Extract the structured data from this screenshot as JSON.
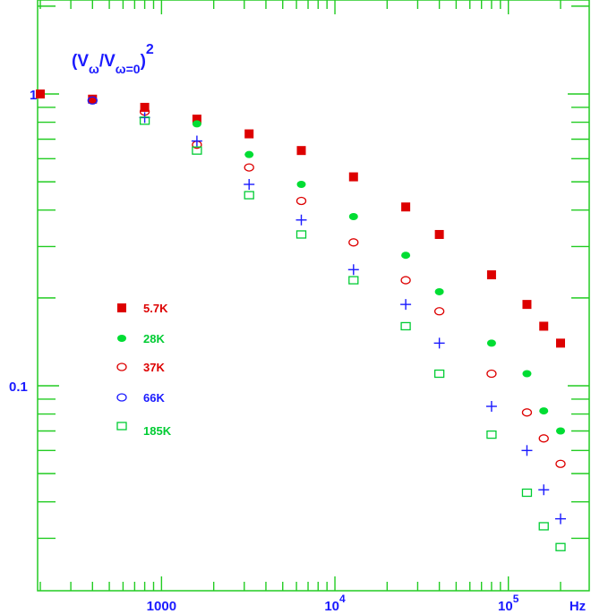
{
  "chart_data": {
    "type": "scatter",
    "title": "",
    "xlabel": "Hz",
    "ylabel": "(Vω/Vω=0)²",
    "ylabel_parts": {
      "open": "(V",
      "sub1": "ω",
      "mid": "/V",
      "sub2": "ω=0",
      "close": ")",
      "exp": "2"
    },
    "x_scale": "log",
    "y_scale": "log",
    "xlim": [
      200,
      200000
    ],
    "ylim": [
      0.015,
      2.0
    ],
    "x_tick_labels": [
      {
        "value": 1000,
        "text": "1000"
      },
      {
        "value": 10000,
        "base": "10",
        "exp": "4"
      },
      {
        "value": 100000,
        "base": "10",
        "exp": "5"
      }
    ],
    "x_unit_label": "Hz",
    "y_tick_labels": [
      {
        "value": 1,
        "text": "1"
      },
      {
        "value": 0.1,
        "text": "0.1"
      }
    ],
    "legend_position": "center-left",
    "series": [
      {
        "name": "5.7K",
        "marker": "filled-square",
        "color": "#dd0000",
        "label_color": "#dd0000",
        "x": [
          200,
          400,
          800,
          1600,
          3200,
          6400,
          12800,
          25600,
          40000,
          80000,
          128000,
          160000,
          200000
        ],
        "y": [
          1.0,
          0.96,
          0.9,
          0.82,
          0.73,
          0.64,
          0.52,
          0.41,
          0.33,
          0.24,
          0.19,
          0.16,
          0.14
        ]
      },
      {
        "name": "28K",
        "marker": "filled-circle",
        "color": "#00dd33",
        "label_color": "#00cc33",
        "x": [
          1600,
          3200,
          6400,
          12800,
          25600,
          40000,
          80000,
          128000,
          160000,
          200000
        ],
        "y": [
          0.79,
          0.62,
          0.49,
          0.38,
          0.28,
          0.21,
          0.14,
          0.11,
          0.082,
          0.07
        ]
      },
      {
        "name": "37K",
        "marker": "open-circle",
        "color": "#dd0000",
        "label_color": "#dd0000",
        "x": [
          800,
          1600,
          3200,
          6400,
          12800,
          25600,
          40000,
          80000,
          128000,
          160000,
          200000
        ],
        "y": [
          0.87,
          0.67,
          0.56,
          0.43,
          0.31,
          0.23,
          0.18,
          0.11,
          0.081,
          0.066,
          0.054
        ]
      },
      {
        "name": "66K",
        "marker": "open-circle",
        "color": "#1a1aff",
        "label_color": "#1a1aff",
        "x": [
          400,
          800,
          1600,
          3200,
          6400,
          12800,
          25600,
          40000,
          80000,
          128000,
          160000,
          200000
        ],
        "y": [
          0.95,
          0.83,
          0.69,
          0.49,
          0.37,
          0.25,
          0.19,
          0.14,
          0.085,
          0.06,
          0.044,
          0.035
        ]
      },
      {
        "name": "185K",
        "marker": "open-square",
        "color": "#00cc33",
        "label_color": "#00cc33",
        "x": [
          800,
          1600,
          3200,
          6400,
          12800,
          25600,
          40000,
          80000,
          128000,
          160000,
          200000
        ],
        "y": [
          0.81,
          0.64,
          0.45,
          0.33,
          0.23,
          0.16,
          0.11,
          0.068,
          0.043,
          0.033,
          0.028
        ]
      }
    ],
    "plus_series_color": "#1a1aff"
  }
}
